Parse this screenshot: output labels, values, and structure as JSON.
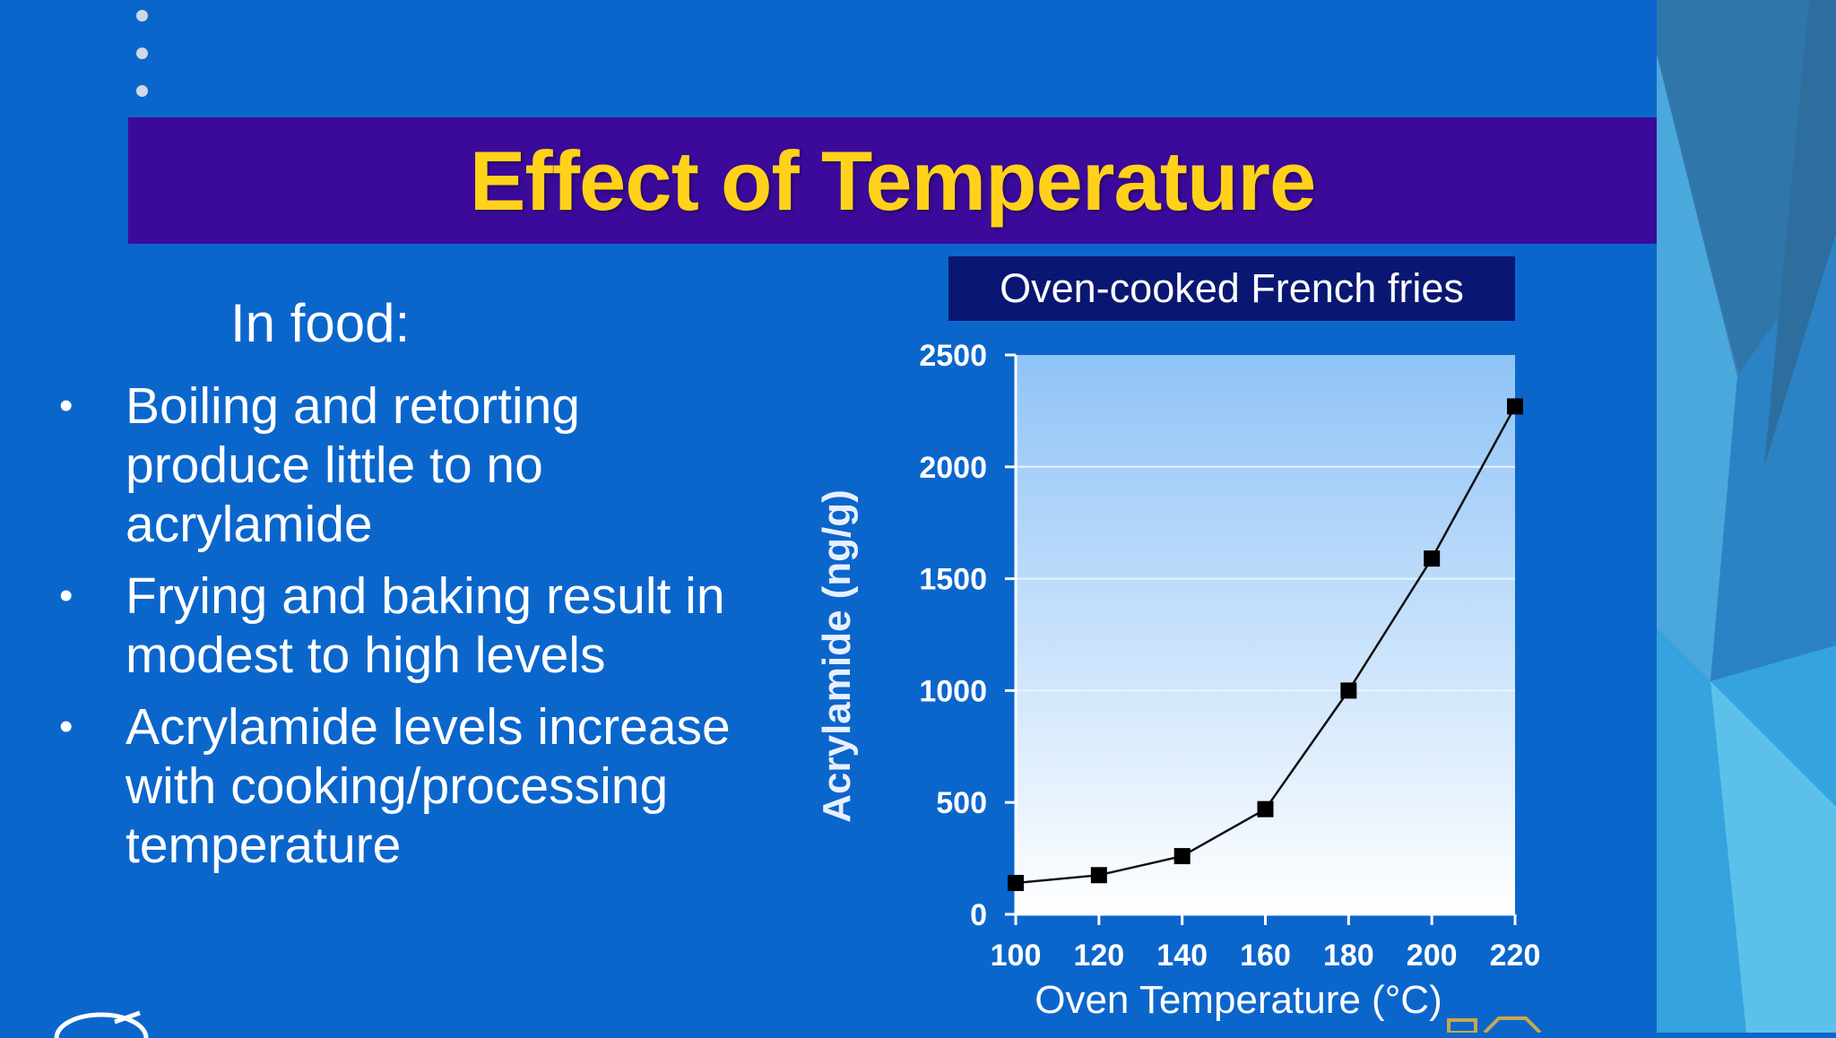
{
  "slide": {
    "title": "Effect of Temperature",
    "subheading": "In food:",
    "bullets": [
      "Boiling and retorting produce little to no acrylamide",
      "Frying and baking result in modest to high levels",
      "Acrylamide levels increase with cooking/processing temperature"
    ],
    "bullet_glyph": "•"
  },
  "colors": {
    "background": "#0b66cc",
    "title_band": "#3b0a9a",
    "title_text": "#ffd219",
    "chart_title_box": "#0a1772"
  },
  "chart_data": {
    "type": "line",
    "title": "Oven-cooked French fries",
    "xlabel": "Oven Temperature (°C)",
    "ylabel": "Acrylamide (ng/g)",
    "x": [
      100,
      120,
      140,
      160,
      180,
      200,
      220
    ],
    "series": [
      {
        "values": [
          140,
          175,
          260,
          470,
          1000,
          1590,
          2270
        ]
      }
    ],
    "xlim": [
      100,
      220
    ],
    "ylim": [
      0,
      2500
    ],
    "xticks": [
      "100",
      "120",
      "140",
      "160",
      "180",
      "200",
      "220"
    ],
    "yticks": [
      "0",
      "500",
      "1000",
      "1500",
      "2000",
      "2500"
    ],
    "grid": "horizontal",
    "marker": "square"
  }
}
